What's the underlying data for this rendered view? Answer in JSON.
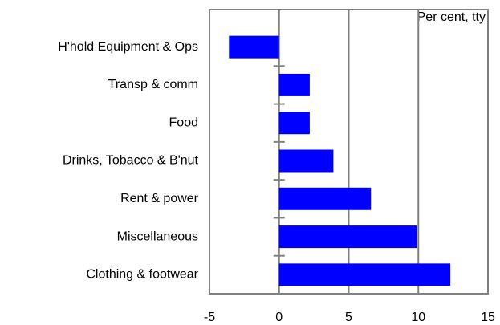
{
  "chart_data": {
    "type": "barh",
    "annotation": "Per cent, tty",
    "categories": [
      "H'hold Equipment & Ops",
      "Transp & comm",
      "Food",
      "Drinks, Tobacco & B'nut",
      "Rent & power",
      "Miscellaneous",
      "Clothing & footwear"
    ],
    "values": [
      -3.6,
      2.2,
      2.2,
      3.9,
      6.6,
      9.9,
      12.3
    ],
    "color": "#0000ff",
    "xlim": [
      -5,
      15
    ],
    "xticks": [
      -5,
      0,
      5,
      10,
      15
    ],
    "grid": true
  }
}
